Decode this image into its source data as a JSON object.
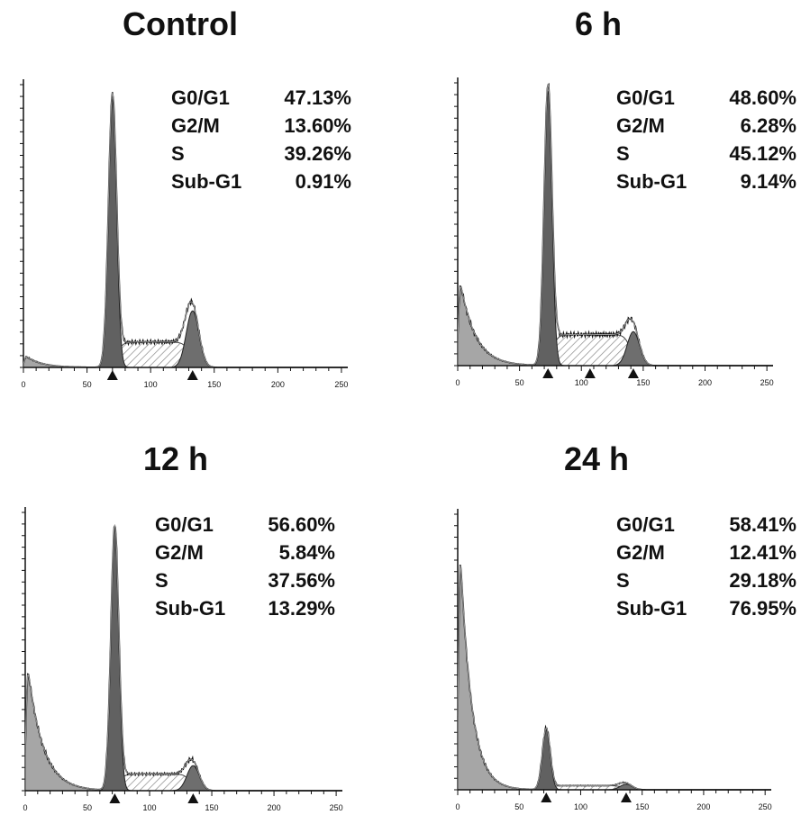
{
  "chart_data": [
    {
      "type": "area",
      "title": "Control",
      "xlim": [
        0,
        255
      ],
      "xticks": [
        "0",
        "50",
        "100",
        "150",
        "200",
        "250"
      ],
      "stats": [
        {
          "label": "G0/G1",
          "value": "47.13%"
        },
        {
          "label": "G2/M",
          "value": "13.60%"
        },
        {
          "label": "S",
          "value": "39.26%"
        },
        {
          "label": "Sub-G1",
          "value": "0.91%"
        }
      ],
      "markers": [
        70,
        133
      ],
      "g1_peak": {
        "x": 70,
        "height": 0.95
      },
      "g2_peak": {
        "x": 133,
        "height": 0.2
      },
      "s_level": 0.09,
      "subg1_height": 0.04
    },
    {
      "type": "area",
      "title": "6 h",
      "xlim": [
        0,
        255
      ],
      "xticks": [
        "0",
        "50",
        "100",
        "150",
        "200",
        "250"
      ],
      "stats": [
        {
          "label": "G0/G1",
          "value": "48.60%"
        },
        {
          "label": "G2/M",
          "value": "6.28%"
        },
        {
          "label": "S",
          "value": "45.12%"
        },
        {
          "label": "Sub-G1",
          "value": "9.14%"
        }
      ],
      "markers": [
        73,
        107,
        142
      ],
      "g1_peak": {
        "x": 73,
        "height": 0.97
      },
      "g2_peak": {
        "x": 142,
        "height": 0.12
      },
      "s_level": 0.11,
      "subg1_height": 0.3
    },
    {
      "type": "area",
      "title": "12 h",
      "xlim": [
        0,
        255
      ],
      "xticks": [
        "0",
        "50",
        "100",
        "150",
        "200",
        "250"
      ],
      "stats": [
        {
          "label": "G0/G1",
          "value": "56.60%"
        },
        {
          "label": "G2/M",
          "value": "5.84%"
        },
        {
          "label": "S",
          "value": "37.56%"
        },
        {
          "label": "Sub-G1",
          "value": "13.29%"
        }
      ],
      "markers": [
        72,
        135
      ],
      "g1_peak": {
        "x": 72,
        "height": 0.94
      },
      "g2_peak": {
        "x": 135,
        "height": 0.09
      },
      "s_level": 0.06,
      "subg1_height": 0.45
    },
    {
      "type": "area",
      "title": "24 h",
      "xlim": [
        0,
        255
      ],
      "xticks": [
        "0",
        "50",
        "100",
        "150",
        "200",
        "250"
      ],
      "stats": [
        {
          "label": "G0/G1",
          "value": "58.41%"
        },
        {
          "label": "G2/M",
          "value": "12.41%"
        },
        {
          "label": "S",
          "value": "29.18%"
        },
        {
          "label": "Sub-G1",
          "value": "76.95%"
        }
      ],
      "markers": [
        72,
        137
      ],
      "g1_peak": {
        "x": 72,
        "height": 0.22
      },
      "g2_peak": {
        "x": 137,
        "height": 0.02
      },
      "s_level": 0.015,
      "subg1_height": 0.88
    }
  ]
}
